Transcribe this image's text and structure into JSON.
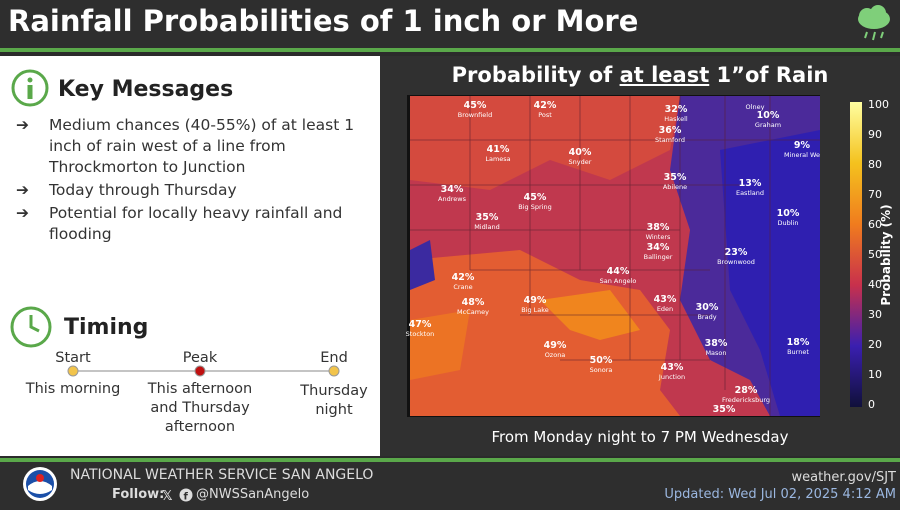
{
  "header": {
    "title": "Rainfall Probabilities of 1 inch or More"
  },
  "key_messages": {
    "heading": "Key Messages",
    "items": [
      "Medium chances (40-55%) of at least 1 inch of rain west of a line from Throckmorton to Junction",
      "Today through Thursday",
      "Potential for locally heavy rainfall and flooding"
    ]
  },
  "timing": {
    "heading": "Timing",
    "stages": [
      {
        "label": "Start",
        "time": "This morning"
      },
      {
        "label": "Peak",
        "time": "This afternoon and Thursday afternoon"
      },
      {
        "label": "End",
        "time": "Thursday night"
      }
    ]
  },
  "map": {
    "title_pre": "Probability of ",
    "title_underlined": "at least",
    "title_post": " 1”of Rain",
    "note": "From Monday night to 7 PM Wednesday",
    "locations": [
      {
        "pct": "45%",
        "name": "Brownfield"
      },
      {
        "pct": "42%",
        "name": "Post"
      },
      {
        "pct": "32%",
        "name": "Haskell"
      },
      {
        "pct": "",
        "name": "Olney"
      },
      {
        "pct": "10%",
        "name": "Graham"
      },
      {
        "pct": "36%",
        "name": "Stamford"
      },
      {
        "pct": "9%",
        "name": "Mineral We"
      },
      {
        "pct": "41%",
        "name": "Lamesa"
      },
      {
        "pct": "40%",
        "name": "Snyder"
      },
      {
        "pct": "35%",
        "name": "Abilene"
      },
      {
        "pct": "13%",
        "name": "Eastland"
      },
      {
        "pct": "34%",
        "name": "Andrews"
      },
      {
        "pct": "45%",
        "name": "Big Spring"
      },
      {
        "pct": "10%",
        "name": "Dublin"
      },
      {
        "pct": "35%",
        "name": "Midland"
      },
      {
        "pct": "38%",
        "name": "Winters"
      },
      {
        "pct": "34%",
        "name": "Ballinger"
      },
      {
        "pct": "23%",
        "name": "Brownwood"
      },
      {
        "pct": "44%",
        "name": "San Angelo"
      },
      {
        "pct": "42%",
        "name": "Crane"
      },
      {
        "pct": "49%",
        "name": "Big Lake"
      },
      {
        "pct": "43%",
        "name": "Eden"
      },
      {
        "pct": "48%",
        "name": "McCamey"
      },
      {
        "pct": "30%",
        "name": "Brady"
      },
      {
        "pct": "47%",
        "name": "Stockton"
      },
      {
        "pct": "18%",
        "name": "Burnet"
      },
      {
        "pct": "38%",
        "name": "Mason"
      },
      {
        "pct": "49%",
        "name": "Ozona"
      },
      {
        "pct": "50%",
        "name": "Sonora"
      },
      {
        "pct": "43%",
        "name": "Junction"
      },
      {
        "pct": "28%",
        "name": "Fredericksburg"
      },
      {
        "pct": "35%",
        "name": ""
      }
    ],
    "colorbar": {
      "label": "Probability (%)",
      "ticks": [
        "100",
        "90",
        "80",
        "70",
        "60",
        "50",
        "40",
        "30",
        "20",
        "10",
        "0"
      ]
    }
  },
  "footer": {
    "office": "NATIONAL WEATHER SERVICE SAN ANGELO",
    "follow": "Follow:",
    "handle": "@NWSSanAngelo",
    "website": "weather.gov/SJT",
    "updated": "Updated: Wed Jul 02, 2025 4:12 AM"
  }
}
